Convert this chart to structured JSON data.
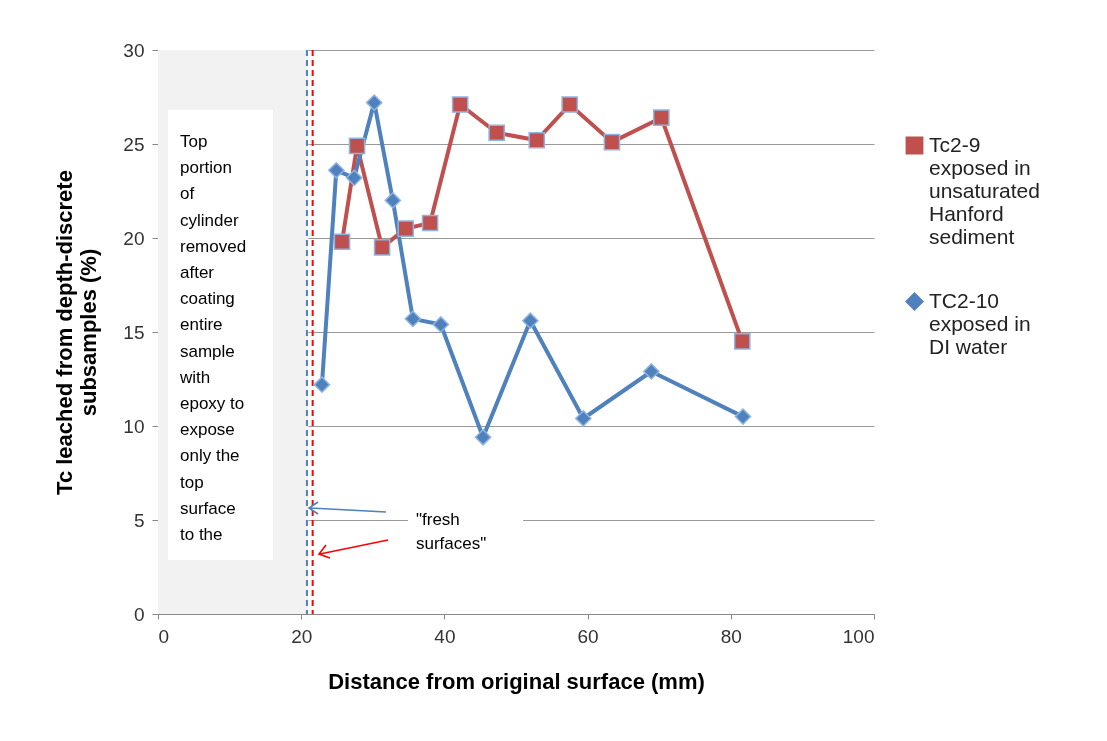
{
  "chart_data": {
    "type": "line",
    "xlabel": "Distance from original surface (mm)",
    "ylabel": "Tc leached from depth-discrete subsamples (%)",
    "xlim": [
      0,
      100
    ],
    "xticks": [
      0,
      20,
      40,
      60,
      80,
      100
    ],
    "ylim": [
      0,
      30
    ],
    "yticks": [
      0,
      5,
      10,
      15,
      20,
      25,
      30
    ],
    "grid": "y",
    "legend": "right",
    "series": [
      {
        "name": "Tc2-9 exposed in unsaturated Hanford sediment",
        "color": "#c0504d",
        "marker": "square",
        "x": [
          25.7,
          27.8,
          31.3,
          34.6,
          38.0,
          42.2,
          47.3,
          52.9,
          57.5,
          63.4,
          70.3,
          81.6
        ],
        "values": [
          19.8,
          24.9,
          19.5,
          20.5,
          20.8,
          27.1,
          25.6,
          25.2,
          27.1,
          25.1,
          26.4,
          14.5
        ]
      },
      {
        "name": "TC2-10 exposed in DI water",
        "color": "#4f81bd",
        "marker": "diamond",
        "x": [
          22.9,
          24.9,
          27.4,
          30.2,
          32.8,
          35.6,
          39.5,
          45.4,
          52.0,
          59.4,
          68.9,
          81.7
        ],
        "values": [
          12.2,
          23.6,
          23.2,
          27.2,
          22.0,
          15.7,
          15.4,
          9.4,
          15.6,
          10.4,
          12.9,
          10.5
        ]
      }
    ],
    "bands": [
      {
        "axis": "x",
        "from": 0,
        "to": 21,
        "color": "#f2f2f2"
      }
    ],
    "ref_lines": [
      {
        "axis": "x",
        "value": 20.8,
        "color": "#4f81bd",
        "line_style": "dashed"
      },
      {
        "axis": "x",
        "value": 21.6,
        "color": "#ff0000",
        "line_style": "dashed"
      }
    ],
    "annotations": [
      "Top portion of cylinder removed after coating entire sample with epoxy to expose only the top surface to the",
      "\"fresh surfaces\""
    ]
  }
}
